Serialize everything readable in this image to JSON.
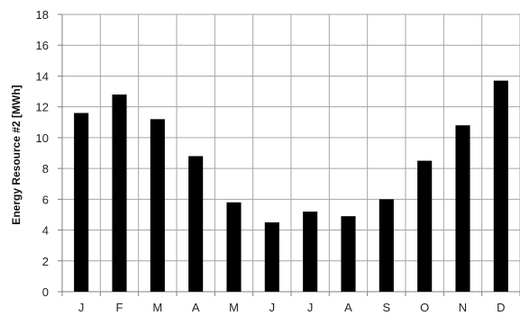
{
  "chart_data": {
    "type": "bar",
    "title": "",
    "xlabel": "",
    "ylabel": "Energy Resource #2  [MWh]",
    "ylim": [
      0,
      18
    ],
    "ytick_step": 2,
    "grid": true,
    "bar_color": "#000000",
    "grid_color": "#a6a6a6",
    "categories": [
      "J",
      "F",
      "M",
      "A",
      "M",
      "J",
      "J",
      "A",
      "S",
      "O",
      "N",
      "D"
    ],
    "values": [
      11.6,
      12.8,
      11.2,
      8.8,
      5.8,
      4.5,
      5.2,
      4.9,
      6.0,
      8.5,
      10.8,
      13.7
    ]
  }
}
